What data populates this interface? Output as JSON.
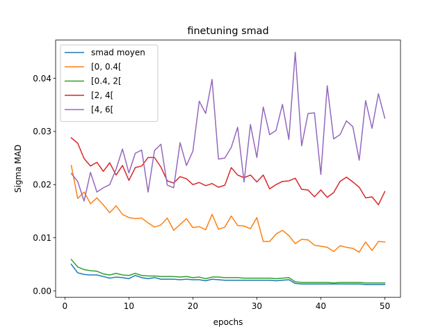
{
  "chart_data": {
    "type": "line",
    "title": "finetuning smad",
    "xlabel": "epochs",
    "ylabel": "Sigma MAD",
    "xlim": [
      -1.45,
      52.45
    ],
    "ylim": [
      -0.0012,
      0.0472
    ],
    "x_ticks": [
      0,
      10,
      20,
      30,
      40,
      50
    ],
    "y_ticks": [
      0.0,
      0.01,
      0.02,
      0.03,
      0.04
    ],
    "x_tick_labels": [
      "0",
      "10",
      "20",
      "30",
      "40",
      "50"
    ],
    "y_tick_labels": [
      "0.00",
      "0.01",
      "0.02",
      "0.03",
      "0.04"
    ],
    "grid": false,
    "legend_position": "top-left",
    "x": [
      1,
      2,
      3,
      4,
      5,
      6,
      7,
      8,
      9,
      10,
      11,
      12,
      13,
      14,
      15,
      16,
      17,
      18,
      19,
      20,
      21,
      22,
      23,
      24,
      25,
      26,
      27,
      28,
      29,
      30,
      31,
      32,
      33,
      34,
      35,
      36,
      37,
      38,
      39,
      40,
      41,
      42,
      43,
      44,
      45,
      46,
      47,
      48,
      49,
      50
    ],
    "series": [
      {
        "name": "smad moyen",
        "color": "#1f77b4",
        "values": [
          0.005,
          0.0034,
          0.0031,
          0.003,
          0.003,
          0.0027,
          0.0024,
          0.0026,
          0.0025,
          0.0023,
          0.0029,
          0.0025,
          0.0023,
          0.0025,
          0.0022,
          0.0022,
          0.0022,
          0.0021,
          0.0022,
          0.0021,
          0.0021,
          0.0019,
          0.0022,
          0.0021,
          0.002,
          0.002,
          0.002,
          0.002,
          0.002,
          0.002,
          0.002,
          0.002,
          0.0019,
          0.002,
          0.0021,
          0.0014,
          0.0013,
          0.0013,
          0.0013,
          0.0013,
          0.0013,
          0.0013,
          0.0013,
          0.0013,
          0.0013,
          0.0013,
          0.0012,
          0.0012,
          0.0012,
          0.0012
        ]
      },
      {
        "name": "[0, 0.4[",
        "color": "#ff7f0e",
        "values": [
          0.0236,
          0.0174,
          0.0186,
          0.0164,
          0.0175,
          0.0162,
          0.0147,
          0.016,
          0.0144,
          0.0138,
          0.0136,
          0.0137,
          0.0128,
          0.012,
          0.0124,
          0.0137,
          0.0114,
          0.0125,
          0.0136,
          0.0119,
          0.0121,
          0.0115,
          0.0144,
          0.0116,
          0.012,
          0.0141,
          0.0123,
          0.0122,
          0.0117,
          0.0138,
          0.0093,
          0.0093,
          0.0107,
          0.0114,
          0.0104,
          0.0089,
          0.0097,
          0.0096,
          0.0086,
          0.0084,
          0.0082,
          0.0074,
          0.0085,
          0.0082,
          0.008,
          0.0073,
          0.0092,
          0.0076,
          0.0093,
          0.0092
        ]
      },
      {
        "name": "[0.4, 2[",
        "color": "#2ca02c",
        "values": [
          0.0059,
          0.0045,
          0.004,
          0.0038,
          0.0037,
          0.0032,
          0.003,
          0.0033,
          0.003,
          0.0029,
          0.0033,
          0.0029,
          0.0028,
          0.0028,
          0.0027,
          0.0027,
          0.0027,
          0.0026,
          0.0027,
          0.0025,
          0.0026,
          0.0023,
          0.0026,
          0.0026,
          0.0025,
          0.0025,
          0.0025,
          0.0024,
          0.0024,
          0.0024,
          0.0024,
          0.0024,
          0.0023,
          0.0024,
          0.0025,
          0.0017,
          0.0016,
          0.0016,
          0.0016,
          0.0016,
          0.0016,
          0.0015,
          0.0016,
          0.0016,
          0.0016,
          0.0016,
          0.0015,
          0.0015,
          0.0015,
          0.0015
        ]
      },
      {
        "name": "[2, 4[",
        "color": "#d62728",
        "values": [
          0.0288,
          0.0278,
          0.0249,
          0.0235,
          0.0242,
          0.0225,
          0.0241,
          0.0218,
          0.0236,
          0.0208,
          0.0232,
          0.0235,
          0.0251,
          0.0251,
          0.0233,
          0.0207,
          0.0203,
          0.0215,
          0.0211,
          0.02,
          0.0204,
          0.0198,
          0.0202,
          0.0195,
          0.0199,
          0.0232,
          0.0218,
          0.0213,
          0.0218,
          0.0205,
          0.0218,
          0.0192,
          0.02,
          0.0206,
          0.0207,
          0.0212,
          0.0191,
          0.019,
          0.0177,
          0.019,
          0.0176,
          0.0185,
          0.0206,
          0.0214,
          0.0205,
          0.0195,
          0.0175,
          0.0177,
          0.0162,
          0.0187
        ]
      },
      {
        "name": "[4, 6[",
        "color": "#9467bd",
        "values": [
          0.0221,
          0.0206,
          0.0169,
          0.0223,
          0.0186,
          0.0194,
          0.02,
          0.0229,
          0.0267,
          0.0222,
          0.0259,
          0.0265,
          0.0186,
          0.0264,
          0.0276,
          0.0199,
          0.0194,
          0.0279,
          0.0236,
          0.0263,
          0.0357,
          0.0334,
          0.0398,
          0.0248,
          0.025,
          0.027,
          0.0308,
          0.0205,
          0.0313,
          0.0251,
          0.0346,
          0.0294,
          0.0302,
          0.0351,
          0.0285,
          0.0449,
          0.0273,
          0.0334,
          0.0335,
          0.0219,
          0.0386,
          0.0286,
          0.0294,
          0.032,
          0.0309,
          0.0246,
          0.0358,
          0.0306,
          0.0371,
          0.0325
        ]
      }
    ]
  }
}
